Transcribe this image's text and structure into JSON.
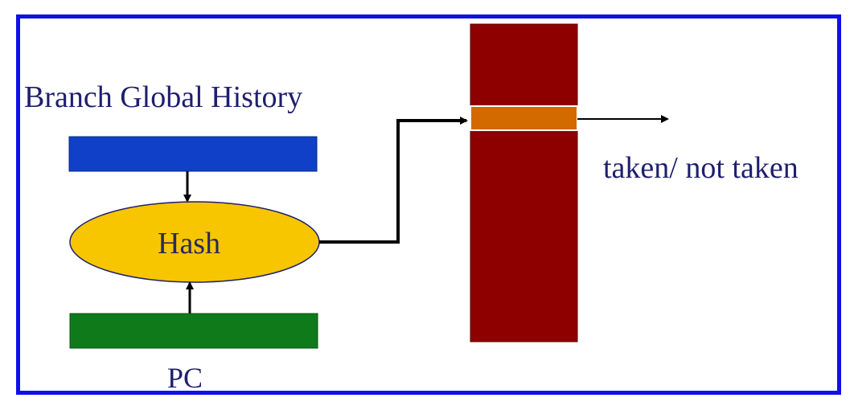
{
  "diagram": {
    "global_history_label": "Branch Global History",
    "hash_label": "Hash",
    "pc_label": "PC",
    "output_label": "taken/ not taken"
  },
  "colors": {
    "frame_border": "#1010e8",
    "history_register": "#1040c8",
    "pc_register": "#0f7a1a",
    "hash_fill": "#f7c600",
    "table_fill": "#8e0000",
    "selected_entry": "#d26a00",
    "text": "#1f1f6e",
    "arrow": "#000000"
  }
}
